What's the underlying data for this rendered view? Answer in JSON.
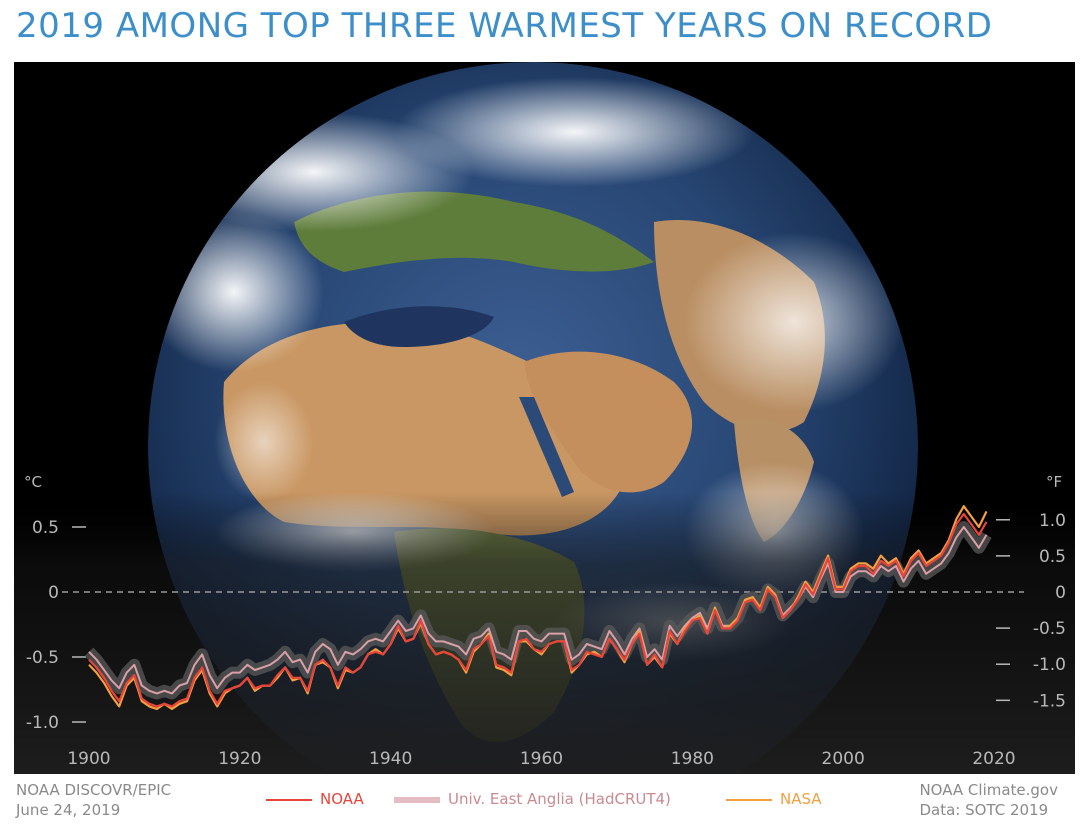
{
  "header": {
    "title": "2019 AMONG TOP THREE WARMEST YEARS ON RECORD"
  },
  "image": {
    "subject": "earth-globe-photo"
  },
  "credits": {
    "left_line1": "NOAA DISCOVR/EPIC",
    "left_line2": "June 24, 2019",
    "right_line1": "NOAA Climate.gov",
    "right_line2": "Data: SOTC 2019"
  },
  "colors": {
    "noaa": "#e8443a",
    "hadcrut": "#d9a0a8",
    "nasa": "#f2a040",
    "title": "#3d8fc9"
  },
  "chart_data": {
    "type": "line",
    "title": "",
    "xlabel": "",
    "ylabel_left": "°C",
    "ylabel_right": "°F",
    "xlim": [
      1900,
      2020
    ],
    "ylim": [
      -1.0,
      0.55
    ],
    "x_ticks": [
      1900,
      1920,
      1940,
      1960,
      1980,
      2000,
      2020
    ],
    "x_tick_labels": [
      "1900",
      "1920",
      "1940",
      "1960",
      "1980",
      "2000",
      "2020"
    ],
    "y_ticks_c": [
      0.5,
      0,
      -0.5,
      -1.0
    ],
    "y_tick_labels_c": [
      "0.5",
      "0",
      "-0.5",
      "-1.0"
    ],
    "y_ticks_f": [
      1.0,
      0.5,
      0,
      -0.5,
      -1.0,
      -1.5
    ],
    "y_tick_labels_f": [
      "1.0",
      "0.5",
      "0",
      "-0.5",
      "-1.0",
      "-1.5"
    ],
    "zero_line": "dashed",
    "legend_placement": "bottom",
    "x": [
      1900,
      1901,
      1902,
      1903,
      1904,
      1905,
      1906,
      1907,
      1908,
      1909,
      1910,
      1911,
      1912,
      1913,
      1914,
      1915,
      1916,
      1917,
      1918,
      1919,
      1920,
      1921,
      1922,
      1923,
      1924,
      1925,
      1926,
      1927,
      1928,
      1929,
      1930,
      1931,
      1932,
      1933,
      1934,
      1935,
      1936,
      1937,
      1938,
      1939,
      1940,
      1941,
      1942,
      1943,
      1944,
      1945,
      1946,
      1947,
      1948,
      1949,
      1950,
      1951,
      1952,
      1953,
      1954,
      1955,
      1956,
      1957,
      1958,
      1959,
      1960,
      1961,
      1962,
      1963,
      1964,
      1965,
      1966,
      1967,
      1968,
      1969,
      1970,
      1971,
      1972,
      1973,
      1974,
      1975,
      1976,
      1977,
      1978,
      1979,
      1980,
      1981,
      1982,
      1983,
      1984,
      1985,
      1986,
      1987,
      1988,
      1989,
      1990,
      1991,
      1992,
      1993,
      1994,
      1995,
      1996,
      1997,
      1998,
      1999,
      2000,
      2001,
      2002,
      2003,
      2004,
      2005,
      2006,
      2007,
      2008,
      2009,
      2010,
      2011,
      2012,
      2013,
      2014,
      2015,
      2016,
      2017,
      2018,
      2019
    ],
    "series": [
      {
        "name": "NOAA",
        "values": [
          -0.52,
          -0.58,
          -0.66,
          -0.76,
          -0.84,
          -0.7,
          -0.64,
          -0.82,
          -0.86,
          -0.88,
          -0.86,
          -0.88,
          -0.84,
          -0.82,
          -0.66,
          -0.58,
          -0.76,
          -0.86,
          -0.76,
          -0.74,
          -0.72,
          -0.66,
          -0.74,
          -0.72,
          -0.72,
          -0.64,
          -0.58,
          -0.66,
          -0.66,
          -0.76,
          -0.56,
          -0.52,
          -0.58,
          -0.72,
          -0.58,
          -0.62,
          -0.58,
          -0.48,
          -0.46,
          -0.48,
          -0.4,
          -0.26,
          -0.38,
          -0.36,
          -0.22,
          -0.4,
          -0.48,
          -0.46,
          -0.48,
          -0.52,
          -0.6,
          -0.44,
          -0.4,
          -0.34,
          -0.56,
          -0.58,
          -0.62,
          -0.38,
          -0.36,
          -0.44,
          -0.46,
          -0.4,
          -0.38,
          -0.38,
          -0.6,
          -0.56,
          -0.46,
          -0.48,
          -0.5,
          -0.36,
          -0.44,
          -0.52,
          -0.4,
          -0.32,
          -0.56,
          -0.48,
          -0.58,
          -0.3,
          -0.4,
          -0.3,
          -0.22,
          -0.2,
          -0.32,
          -0.14,
          -0.28,
          -0.28,
          -0.22,
          -0.08,
          -0.06,
          -0.14,
          0.02,
          -0.04,
          -0.2,
          -0.14,
          -0.06,
          0.06,
          -0.02,
          0.12,
          0.26,
          0.02,
          0.02,
          0.16,
          0.2,
          0.2,
          0.14,
          0.24,
          0.2,
          0.24,
          0.12,
          0.24,
          0.3,
          0.2,
          0.24,
          0.28,
          0.38,
          0.52,
          0.6,
          0.52,
          0.44,
          0.54
        ]
      },
      {
        "name": "Univ. East Anglia (HadCRUT4)",
        "values": [
          -0.46,
          -0.52,
          -0.6,
          -0.68,
          -0.74,
          -0.62,
          -0.56,
          -0.72,
          -0.76,
          -0.78,
          -0.76,
          -0.78,
          -0.72,
          -0.7,
          -0.56,
          -0.48,
          -0.64,
          -0.74,
          -0.66,
          -0.62,
          -0.62,
          -0.56,
          -0.6,
          -0.58,
          -0.56,
          -0.52,
          -0.46,
          -0.54,
          -0.52,
          -0.62,
          -0.46,
          -0.4,
          -0.44,
          -0.56,
          -0.46,
          -0.48,
          -0.44,
          -0.38,
          -0.36,
          -0.38,
          -0.3,
          -0.22,
          -0.3,
          -0.28,
          -0.18,
          -0.32,
          -0.38,
          -0.38,
          -0.4,
          -0.42,
          -0.48,
          -0.36,
          -0.34,
          -0.28,
          -0.46,
          -0.48,
          -0.52,
          -0.3,
          -0.3,
          -0.36,
          -0.38,
          -0.32,
          -0.32,
          -0.32,
          -0.52,
          -0.48,
          -0.4,
          -0.42,
          -0.44,
          -0.3,
          -0.38,
          -0.48,
          -0.36,
          -0.28,
          -0.5,
          -0.44,
          -0.52,
          -0.26,
          -0.34,
          -0.26,
          -0.2,
          -0.16,
          -0.28,
          -0.12,
          -0.26,
          -0.26,
          -0.2,
          -0.06,
          -0.04,
          -0.12,
          0.02,
          -0.02,
          -0.18,
          -0.12,
          -0.06,
          0.04,
          -0.04,
          0.1,
          0.22,
          0.0,
          0.0,
          0.12,
          0.16,
          0.16,
          0.12,
          0.2,
          0.16,
          0.2,
          0.08,
          0.18,
          0.24,
          0.14,
          0.18,
          0.22,
          0.3,
          0.42,
          0.5,
          0.42,
          0.34,
          0.44
        ]
      },
      {
        "name": "NASA",
        "values": [
          -0.56,
          -0.62,
          -0.7,
          -0.8,
          -0.88,
          -0.72,
          -0.66,
          -0.84,
          -0.88,
          -0.9,
          -0.86,
          -0.9,
          -0.86,
          -0.84,
          -0.68,
          -0.6,
          -0.78,
          -0.88,
          -0.78,
          -0.74,
          -0.72,
          -0.66,
          -0.76,
          -0.72,
          -0.72,
          -0.66,
          -0.58,
          -0.68,
          -0.66,
          -0.78,
          -0.56,
          -0.54,
          -0.58,
          -0.74,
          -0.6,
          -0.62,
          -0.58,
          -0.48,
          -0.44,
          -0.48,
          -0.4,
          -0.28,
          -0.38,
          -0.36,
          -0.24,
          -0.4,
          -0.48,
          -0.46,
          -0.48,
          -0.52,
          -0.62,
          -0.46,
          -0.4,
          -0.32,
          -0.58,
          -0.6,
          -0.64,
          -0.38,
          -0.38,
          -0.44,
          -0.48,
          -0.4,
          -0.38,
          -0.38,
          -0.62,
          -0.56,
          -0.48,
          -0.46,
          -0.5,
          -0.36,
          -0.44,
          -0.54,
          -0.4,
          -0.3,
          -0.56,
          -0.5,
          -0.58,
          -0.32,
          -0.4,
          -0.28,
          -0.22,
          -0.18,
          -0.32,
          -0.12,
          -0.28,
          -0.26,
          -0.2,
          -0.06,
          -0.04,
          -0.12,
          0.04,
          -0.02,
          -0.2,
          -0.14,
          -0.04,
          0.08,
          0.0,
          0.14,
          0.28,
          0.04,
          0.04,
          0.18,
          0.22,
          0.22,
          0.18,
          0.28,
          0.22,
          0.26,
          0.14,
          0.26,
          0.32,
          0.22,
          0.26,
          0.3,
          0.4,
          0.56,
          0.66,
          0.58,
          0.5,
          0.62
        ]
      }
    ]
  }
}
